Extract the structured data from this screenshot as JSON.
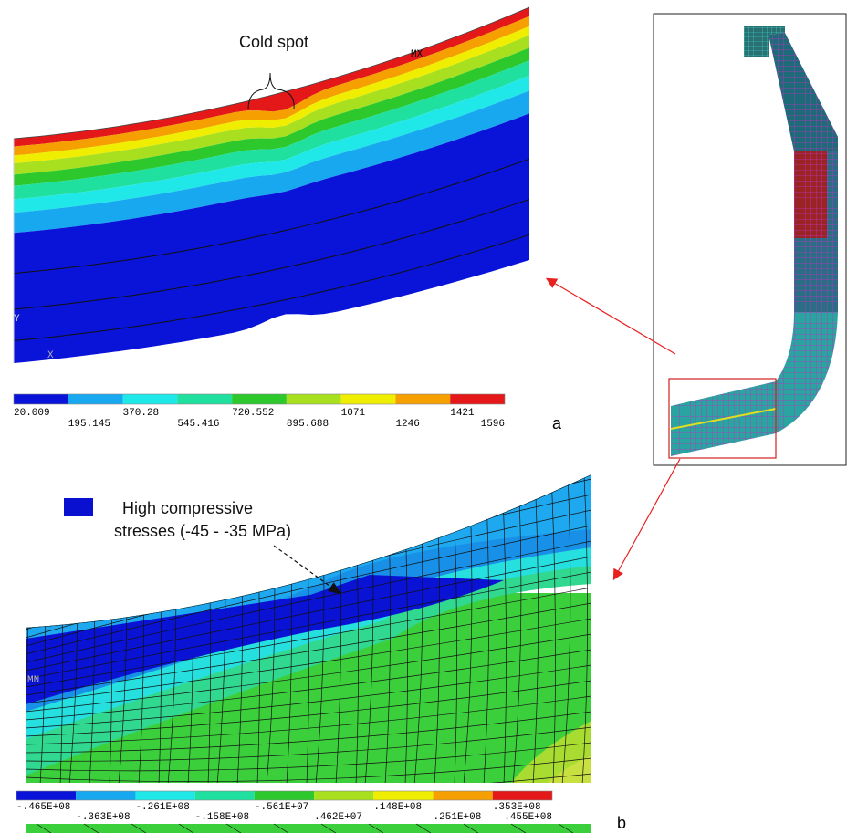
{
  "panel_a": {
    "annotation": "Cold spot",
    "max_label": "MX",
    "axis_y": "Y",
    "axis_x": "X",
    "legend_labels": [
      "20.009",
      "195.145",
      "370.28",
      "545.416",
      "720.552",
      "895.688",
      "1071",
      "1246",
      "1421",
      "1596"
    ],
    "label": "a"
  },
  "panel_b": {
    "annotation": [
      "High compressive",
      "stresses (-45 - -35 MPa)"
    ],
    "min_label": "MN",
    "legend_labels": [
      "-.465E+08",
      "-.363E+08",
      "-.261E+08",
      "-.158E+08",
      "-.561E+07",
      ".462E+07",
      ".148E+08",
      ".251E+08",
      ".353E+08",
      ".455E+08"
    ],
    "label": "b"
  }
}
